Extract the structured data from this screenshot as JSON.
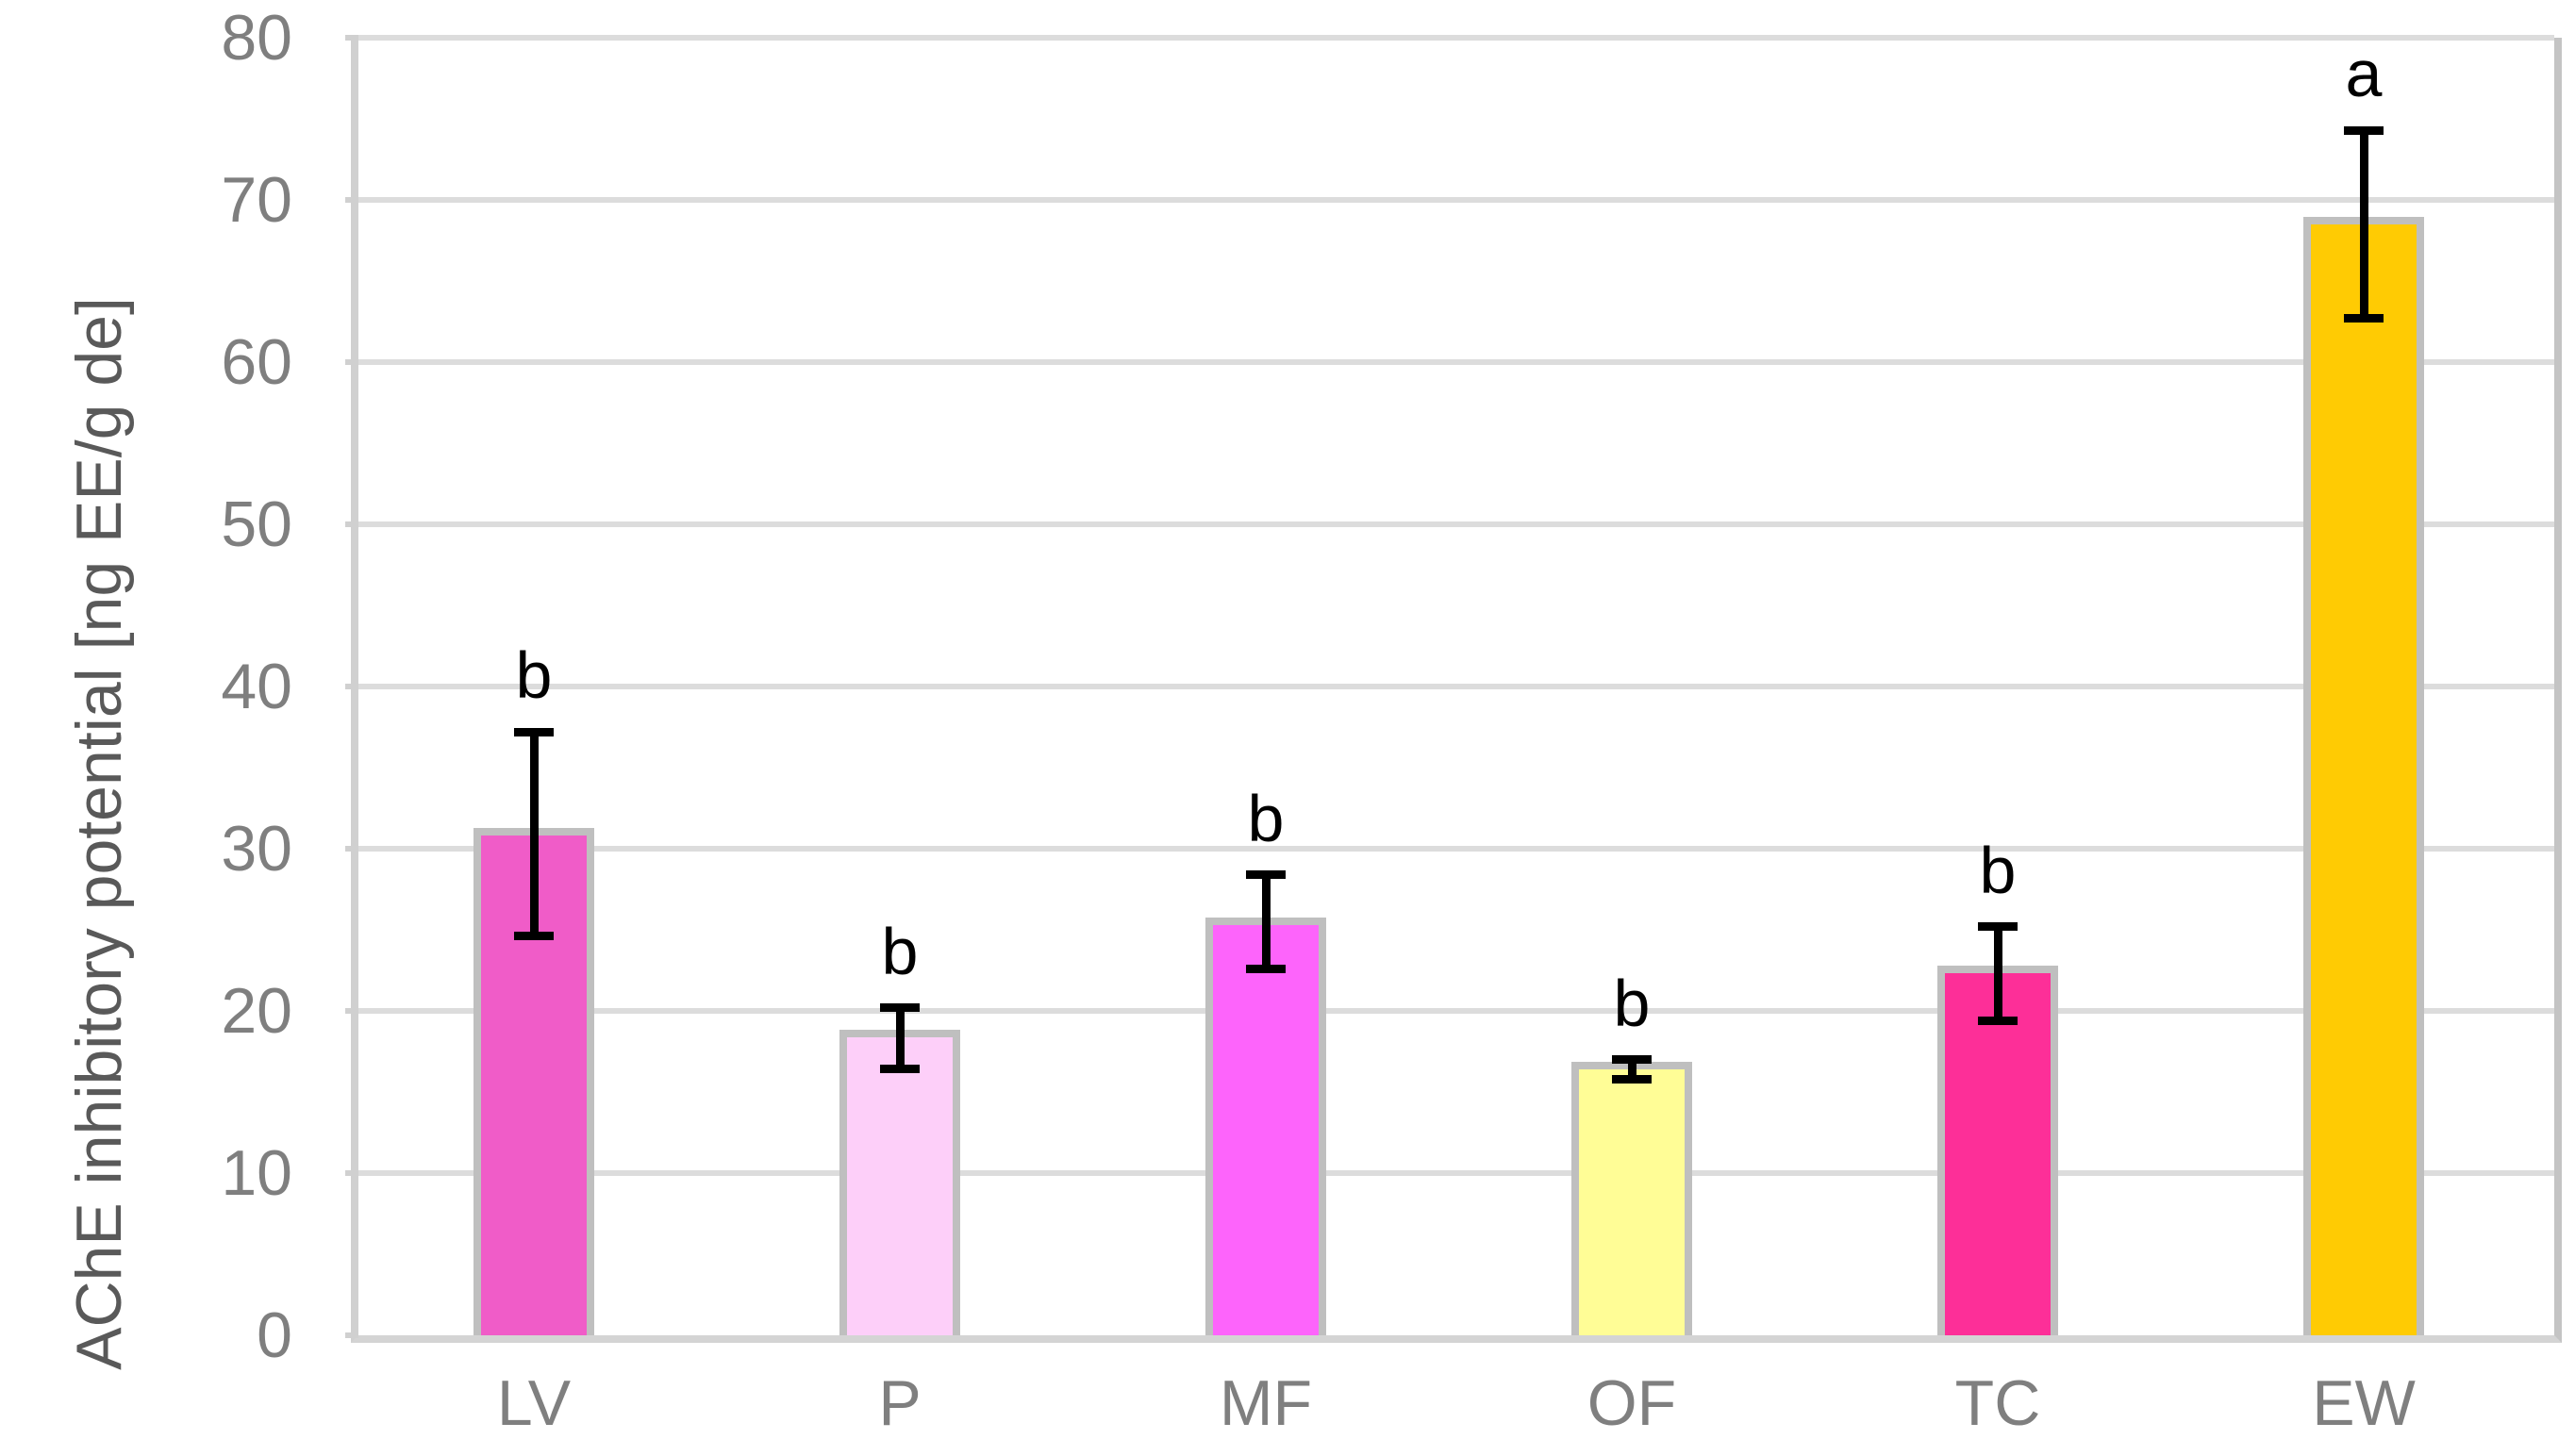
{
  "chart_data": {
    "type": "bar",
    "title": "",
    "xlabel": "",
    "ylabel": "AChE inhibitory potential [ng EE/g de]",
    "ylim": [
      0,
      80
    ],
    "yticks": [
      0,
      10,
      20,
      30,
      40,
      50,
      60,
      70,
      80
    ],
    "grid": "horizontal",
    "legend_position": "none",
    "categories": [
      "LV",
      "P",
      "MF",
      "OF",
      "TC",
      "EW"
    ],
    "values": [
      30.8,
      18.4,
      25.3,
      16.4,
      22.3,
      68.5
    ],
    "error_upper": [
      37.2,
      20.2,
      28.4,
      17.0,
      25.2,
      74.3
    ],
    "error_lower": [
      24.6,
      16.4,
      22.6,
      15.8,
      19.4,
      62.7
    ],
    "significance_letters": [
      "b",
      "b",
      "b",
      "b",
      "b",
      "a"
    ],
    "bar_colors": [
      "#F05CC8",
      "#FDCFF9",
      "#FD64FB",
      "#FFFD96",
      "#FD2F98",
      "#FFCB03"
    ],
    "bar_border_color": "#BFBFBF",
    "error_bar_color": "#000000",
    "gridline_color": "#DCDCDC",
    "axis_line_color": "#D0D0D0",
    "tick_label_color": "#7F7F7F",
    "axis_title_color": "#595959"
  }
}
